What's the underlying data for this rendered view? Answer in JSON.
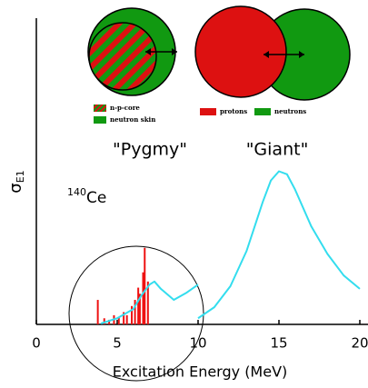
{
  "chart_data": {
    "type": "line",
    "xlabel": "Excitation Energy (MeV)",
    "ylabel": {
      "symbol": "σ",
      "subscript": "E1"
    },
    "isotope": {
      "mass": "140",
      "symbol": "Ce"
    },
    "labels": {
      "pygmy": "\"Pygmy\"",
      "giant": "\"Giant\""
    },
    "legend": {
      "core": "n-p-core",
      "skin": "neutron skin",
      "protons": "protons",
      "neutrons": "neutrons"
    },
    "xlim": [
      0,
      20
    ],
    "xticks": [
      0,
      5,
      10,
      15,
      20
    ],
    "ylim": [
      0,
      100
    ],
    "series": [
      {
        "color": "#33ddee",
        "x": [
          4,
          5,
          6,
          6.5,
          7,
          7.3,
          7.7,
          8.5,
          9.3,
          10
        ],
        "values": [
          0.3,
          2,
          5,
          9.5,
          13,
          14,
          11.6,
          8,
          10.4,
          13
        ]
      },
      {
        "color": "#33ddee",
        "x": [
          10,
          11,
          12,
          13,
          14,
          14.5,
          15,
          15.5,
          16,
          17,
          18,
          19,
          20
        ],
        "values": [
          2,
          5.6,
          12.5,
          24,
          40,
          47,
          50,
          49,
          44,
          32,
          23,
          16,
          11.6
        ]
      }
    ],
    "spikes": {
      "color": "#ee1111",
      "x": [
        3.8,
        4.2,
        4.5,
        4.8,
        5.1,
        5.4,
        5.6,
        5.9,
        6.1,
        6.3,
        6.4,
        6.6,
        6.7,
        6.9
      ],
      "values": [
        8,
        2,
        1.5,
        3,
        2.5,
        4,
        3,
        6,
        8,
        12,
        10,
        17,
        25,
        14
      ]
    }
  }
}
